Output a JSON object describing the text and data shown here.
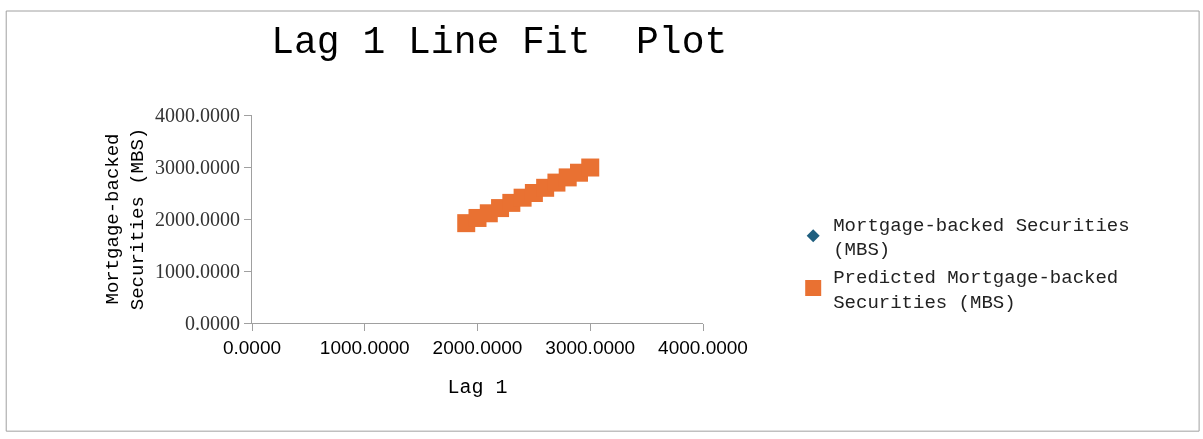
{
  "chart_data": {
    "type": "scatter",
    "title": "Lag 1 Line Fit  Plot",
    "xlabel": "Lag 1",
    "ylabel": "Mortgage-backed Securities (MBS)",
    "x": [
      1900,
      2000,
      2100,
      2200,
      2300,
      2400,
      2500,
      2600,
      2700,
      2800,
      2900,
      3000
    ],
    "series": [
      {
        "name": "Mortgage-backed Securities (MBS)",
        "color": "#1f5f7f",
        "marker": "diamond",
        "values": [
          null,
          null,
          null,
          null,
          null,
          null,
          null,
          null,
          null,
          null,
          null,
          null
        ]
      },
      {
        "name": "Predicted Mortgage-backed Securities (MBS)",
        "color": "#e97132",
        "marker": "square",
        "values": [
          1920,
          2020,
          2110,
          2210,
          2310,
          2410,
          2500,
          2600,
          2700,
          2800,
          2890,
          2990
        ]
      }
    ],
    "xlim": [
      0,
      4000
    ],
    "ylim": [
      0,
      4000
    ],
    "xticks": [
      {
        "value": 0,
        "label": "0.0000"
      },
      {
        "value": 1000,
        "label": "1000.0000"
      },
      {
        "value": 2000,
        "label": "2000.0000"
      },
      {
        "value": 3000,
        "label": "3000.0000"
      },
      {
        "value": 4000,
        "label": "4000.0000"
      }
    ],
    "yticks": [
      {
        "value": 0,
        "label": "0.0000"
      },
      {
        "value": 1000,
        "label": "1000.0000"
      },
      {
        "value": 2000,
        "label": "2000.0000"
      },
      {
        "value": 3000,
        "label": "3000.0000"
      },
      {
        "value": 4000,
        "label": "4000.0000"
      }
    ],
    "legend": "right"
  }
}
